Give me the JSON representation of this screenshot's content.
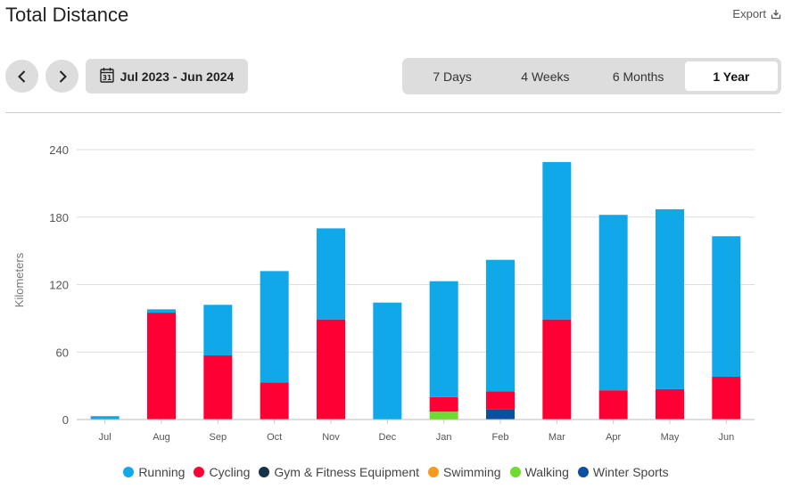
{
  "header": {
    "title": "Total Distance",
    "export_label": "Export"
  },
  "toolbar": {
    "date_range": "Jul 2023 - Jun 2024",
    "calendar_day": "31",
    "periods": [
      "7 Days",
      "4 Weeks",
      "6 Months",
      "1 Year"
    ],
    "active_period": "1 Year"
  },
  "chart_data": {
    "type": "bar",
    "stacked": true,
    "ylabel": "Kilometers",
    "xlabel": "",
    "ylim": [
      0,
      240
    ],
    "yticks": [
      0,
      60,
      120,
      180,
      240
    ],
    "categories": [
      "Jul",
      "Aug",
      "Sep",
      "Oct",
      "Nov",
      "Dec",
      "Jan",
      "Feb",
      "Mar",
      "Apr",
      "May",
      "Jun"
    ],
    "series": [
      {
        "name": "Walking",
        "color": "#6ddc2e",
        "values": [
          0,
          0,
          0,
          0,
          0,
          0,
          7,
          0,
          0,
          0,
          0,
          0
        ]
      },
      {
        "name": "Winter Sports",
        "color": "#0a4fa0",
        "values": [
          0,
          0,
          0,
          0,
          0,
          0,
          0,
          9,
          0,
          0,
          0,
          0
        ]
      },
      {
        "name": "Cycling",
        "color": "#ff0035",
        "values": [
          0,
          95,
          57,
          33,
          89,
          0,
          13,
          16,
          89,
          26,
          27,
          38
        ]
      },
      {
        "name": "Running",
        "color": "#11a8ea",
        "values": [
          3,
          3,
          45,
          99,
          81,
          104,
          103,
          117,
          140,
          156,
          160,
          125
        ]
      },
      {
        "name": "Gym & Fitness Equipment",
        "color": "#14324a",
        "values": [
          0,
          0,
          0,
          0,
          0,
          0,
          0,
          0,
          0,
          0,
          0,
          0
        ]
      },
      {
        "name": "Swimming",
        "color": "#f59a1c",
        "values": [
          0,
          0,
          0,
          0,
          0,
          0,
          0,
          0,
          0,
          0,
          0,
          0
        ]
      }
    ],
    "legend": {
      "placement": "bottom",
      "order": [
        "Running",
        "Cycling",
        "Gym & Fitness Equipment",
        "Swimming",
        "Walking",
        "Winter Sports"
      ]
    },
    "grid": true
  }
}
